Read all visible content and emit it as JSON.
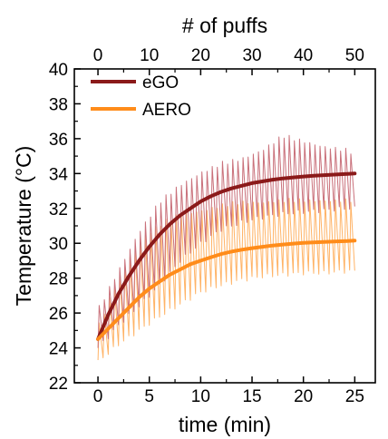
{
  "chart_data": {
    "type": "line",
    "xlabel": "time (min)",
    "ylabel": "Temperature (°C)",
    "top_xlabel": "# of puffs",
    "xlim": [
      -2.3,
      27
    ],
    "ylim": [
      22,
      40
    ],
    "top_xlim": [
      -4.6,
      54
    ],
    "x_ticks": [
      0,
      5,
      10,
      15,
      20,
      25
    ],
    "y_ticks": [
      22,
      24,
      26,
      28,
      30,
      32,
      34,
      36,
      38,
      40
    ],
    "top_x_ticks": [
      0,
      10,
      20,
      30,
      40,
      50
    ],
    "grid": false,
    "legend_position": "top-left",
    "series": [
      {
        "name": "eGO",
        "color": "#8b1a1a",
        "raw_color": "#c9707a",
        "x": [
          0,
          1,
          2,
          3,
          4,
          5,
          6,
          7,
          8,
          9,
          10,
          11,
          12,
          13,
          14,
          15,
          16,
          17,
          18,
          19,
          20,
          21,
          22,
          23,
          24,
          25
        ],
        "values": [
          24.5,
          25.9,
          27.1,
          28.1,
          29.0,
          29.8,
          30.5,
          31.1,
          31.6,
          32.0,
          32.4,
          32.7,
          32.95,
          33.15,
          33.3,
          33.45,
          33.55,
          33.65,
          33.72,
          33.78,
          33.83,
          33.87,
          33.91,
          33.94,
          33.97,
          34.0
        ],
        "raw_envelope": {
          "x": [
            0,
            2,
            4,
            6,
            8,
            10,
            12,
            14,
            16,
            18,
            20,
            22,
            24,
            25
          ],
          "low": [
            24.0,
            25.3,
            26.4,
            27.6,
            29.0,
            30.0,
            30.8,
            31.2,
            31.5,
            31.7,
            31.8,
            31.9,
            32.0,
            32.0
          ],
          "high": [
            26.3,
            28.6,
            30.8,
            32.5,
            33.5,
            34.2,
            34.7,
            35.0,
            35.5,
            36.3,
            36.0,
            35.7,
            35.5,
            35.3
          ]
        }
      },
      {
        "name": "AERO",
        "color": "#ff8c1a",
        "raw_color": "#ffb366",
        "x": [
          0,
          1,
          2,
          3,
          4,
          5,
          6,
          7,
          8,
          9,
          10,
          11,
          12,
          13,
          14,
          15,
          16,
          17,
          18,
          19,
          20,
          21,
          22,
          23,
          24,
          25
        ],
        "values": [
          24.5,
          25.1,
          25.7,
          26.3,
          26.9,
          27.4,
          27.8,
          28.2,
          28.5,
          28.8,
          29.0,
          29.2,
          29.38,
          29.52,
          29.63,
          29.72,
          29.8,
          29.87,
          29.93,
          29.98,
          30.02,
          30.05,
          30.08,
          30.1,
          30.12,
          30.15
        ],
        "raw_envelope": {
          "x": [
            0,
            2,
            4,
            6,
            8,
            10,
            12,
            14,
            16,
            18,
            20,
            22,
            24,
            25
          ],
          "low": [
            23.2,
            24.2,
            25.0,
            25.8,
            26.5,
            27.2,
            27.6,
            27.9,
            28.1,
            28.2,
            28.3,
            28.3,
            28.4,
            28.4
          ],
          "high": [
            25.3,
            28.2,
            30.3,
            31.2,
            31.8,
            32.0,
            32.3,
            32.5,
            32.5,
            32.6,
            32.6,
            32.6,
            32.6,
            32.6
          ]
        }
      }
    ]
  }
}
